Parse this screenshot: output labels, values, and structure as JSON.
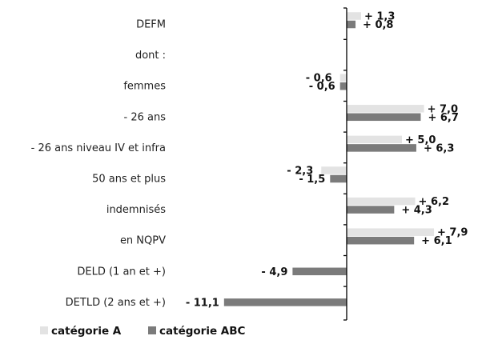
{
  "chart_data": {
    "type": "bar",
    "orientation": "horizontal",
    "categories": [
      "DEFM",
      "dont :",
      "femmes",
      "- 26 ans",
      "- 26 ans niveau IV et infra",
      "50 ans et plus",
      "indemnisés",
      "en NQPV",
      "DELD (1 an et +)",
      "DETLD (2 ans et +)"
    ],
    "series": [
      {
        "name": "catégorie A",
        "color": "#e3e3e3",
        "values": [
          1.3,
          null,
          -0.6,
          7.0,
          5.0,
          -2.3,
          6.2,
          7.9,
          null,
          null
        ],
        "labels": [
          "+ 1,3",
          "",
          "- 0,6",
          "+ 7,0",
          "+ 5,0",
          "- 2,3",
          "+ 6,2",
          "+ 7,9",
          "",
          ""
        ]
      },
      {
        "name": "catégorie ABC",
        "color": "#7b7b7b",
        "values": [
          0.8,
          null,
          -0.6,
          6.7,
          6.3,
          -1.5,
          4.3,
          6.1,
          -4.9,
          -11.1
        ],
        "labels": [
          "+ 0,8",
          "",
          "- 0,6",
          "+ 6,7",
          "+ 6,3",
          "- 1,5",
          "+ 4,3",
          "+ 6,1",
          "- 4,9",
          "- 11,1"
        ]
      }
    ],
    "grid": false,
    "legend_position": "bottom-left"
  }
}
